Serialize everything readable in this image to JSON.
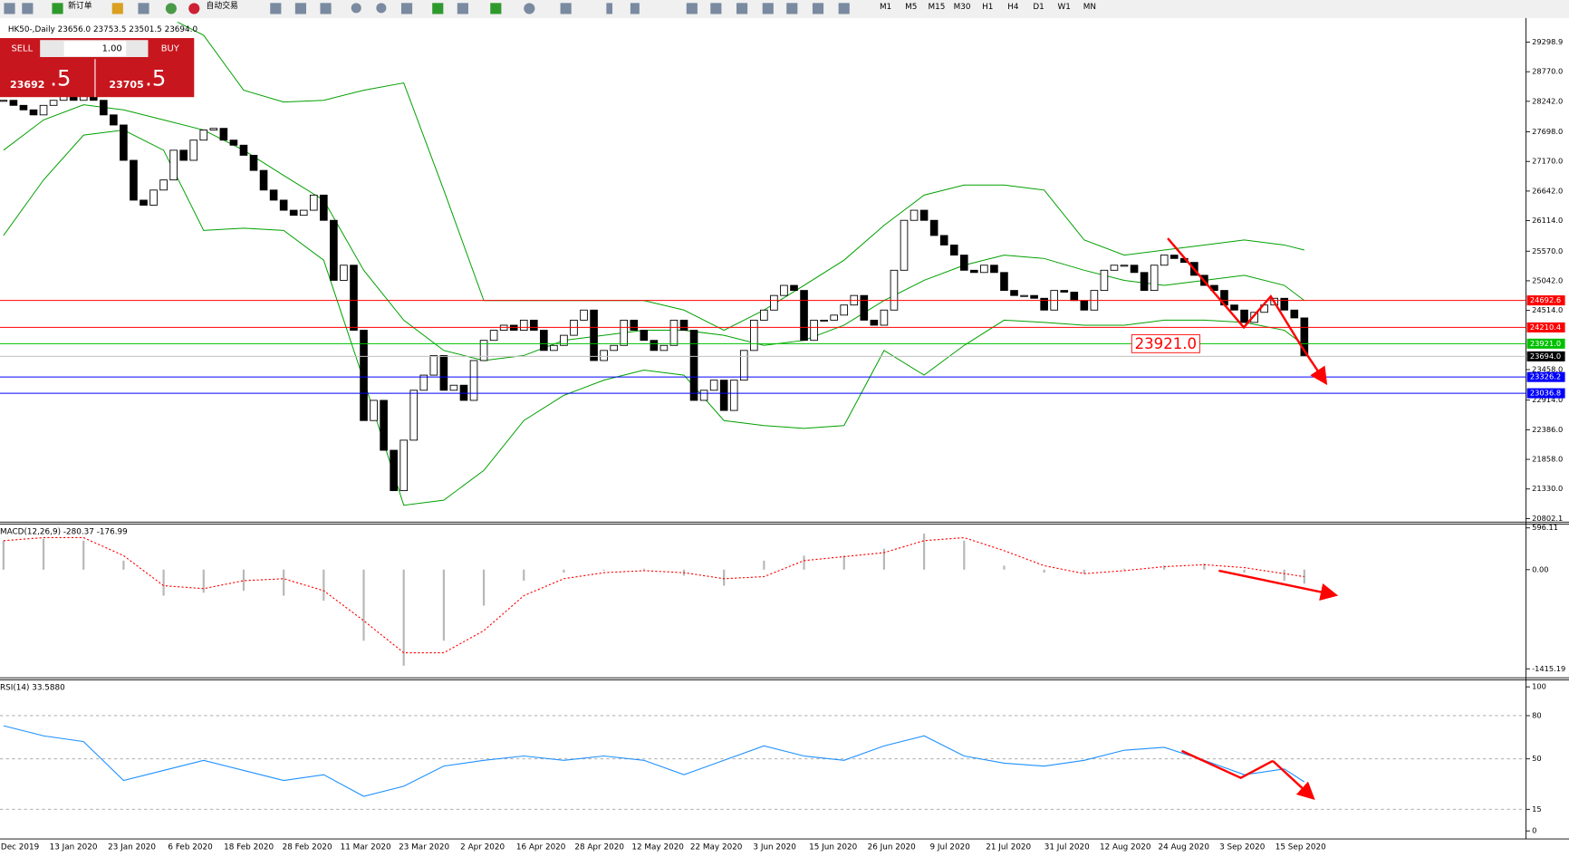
{
  "toolbar": {
    "new_order": "新订单",
    "auto_trading": "自动交易",
    "timeframes": [
      "M1",
      "M5",
      "M15",
      "M30",
      "H1",
      "H4",
      "D1",
      "W1",
      "MN"
    ]
  },
  "trade_panel": {
    "sell": "SELL",
    "lots": "1.00",
    "buy": "BUY",
    "sell_price": "23692",
    "sell_fraction": ".5",
    "buy_price": "23705",
    "buy_fraction": ".5"
  },
  "chart_data": [
    {
      "type": "candlestick",
      "title": "HK50-,Daily",
      "header_values": [
        "23656.0",
        "23753.5",
        "23501.5",
        "23694.0"
      ],
      "close": [
        28260,
        28170,
        28090,
        28000,
        28170,
        28260,
        28350,
        28260,
        28350,
        28260,
        28000,
        27820,
        27190,
        26480,
        26390,
        26660,
        26840,
        27370,
        27190,
        27550,
        27730,
        27760,
        27550,
        27460,
        27280,
        27010,
        26660,
        26480,
        26300,
        26210,
        26300,
        26570,
        26120,
        25050,
        25320,
        24160,
        22550,
        22910,
        22020,
        21300,
        22200,
        23090,
        23360,
        23710,
        23090,
        23180,
        22910,
        23620,
        23980,
        24160,
        24250,
        24160,
        24340,
        24160,
        23800,
        23890,
        24070,
        24340,
        24520,
        23620,
        23800,
        23890,
        24340,
        24160,
        23980,
        23800,
        23890,
        24340,
        24160,
        22910,
        23090,
        23270,
        22730,
        23270,
        23800,
        24340,
        24520,
        24780,
        24960,
        24870,
        23980,
        24340,
        24340,
        24430,
        24610,
        24780,
        24340,
        24250,
        24520,
        25230,
        26120,
        26300,
        26120,
        25850,
        25680,
        25500,
        25230,
        25190,
        25320,
        25190,
        24870,
        24780,
        24780,
        24730,
        24520,
        24870,
        24840,
        24690,
        24520,
        24870,
        25230,
        25320,
        25320,
        25190,
        24870,
        25320,
        25500,
        25440,
        25370,
        25140,
        24960,
        24870,
        24610,
        24520,
        24300,
        24480,
        24610,
        24730,
        24520,
        24380,
        23694
      ],
      "bands": {
        "color": "#00a000",
        "x": [
          0,
          4,
          8,
          12,
          16,
          20,
          24,
          28,
          32,
          36,
          40,
          44,
          48,
          52,
          56,
          60,
          64,
          68,
          72,
          76,
          80,
          84,
          88,
          92,
          96,
          100,
          104,
          108,
          112,
          116,
          120,
          124,
          128,
          130
        ],
        "upper": [
          30050,
          30140,
          30050,
          29960,
          29780,
          29420,
          28440,
          28230,
          28260,
          28440,
          28570,
          26660,
          24690,
          24690,
          24690,
          24690,
          24690,
          24520,
          24160,
          24520,
          24960,
          25410,
          26030,
          26570,
          26750,
          26750,
          26660,
          25770,
          25500,
          25590,
          25680,
          25770,
          25680,
          25590
        ],
        "middle": [
          27370,
          27910,
          28180,
          28090,
          27910,
          27730,
          27370,
          26920,
          26480,
          25230,
          24340,
          23800,
          23620,
          23710,
          23980,
          24070,
          24160,
          24160,
          24070,
          23890,
          23980,
          24250,
          24690,
          25050,
          25320,
          25500,
          25440,
          25230,
          25050,
          24960,
          25050,
          25140,
          24960,
          24690
        ],
        "lower": [
          25850,
          26840,
          27640,
          27730,
          27370,
          25940,
          25980,
          25940,
          25410,
          23270,
          21040,
          21130,
          21660,
          22550,
          23000,
          23270,
          23450,
          23360,
          22550,
          22460,
          22410,
          22460,
          23800,
          23360,
          23890,
          24340,
          24300,
          24250,
          24250,
          24340,
          24340,
          24300,
          24160,
          23890
        ]
      },
      "ylim": [
        20748,
        29656
      ],
      "yticks": [
        29298.9,
        {
          "value": 28770,
          "label": "28770.0"
        },
        {
          "value": 28242,
          "label": "28242.0"
        },
        {
          "value": 27698,
          "label": "27698.0"
        },
        {
          "value": 27170,
          "label": "27170.0"
        },
        {
          "value": 26642,
          "label": "26642.0"
        },
        {
          "value": 26114,
          "label": "26114.0"
        },
        {
          "value": 25570,
          "label": "25570.0"
        },
        {
          "value": 25042,
          "label": "25042.0"
        },
        {
          "value": 24514,
          "label": "24514.0"
        },
        {
          "value": 23458,
          "label": "23458.0"
        },
        {
          "value": 22914,
          "label": "22914.0"
        },
        {
          "value": 22386,
          "label": "22386.0"
        },
        {
          "value": 21858,
          "label": "21858.0"
        },
        {
          "value": 21330,
          "label": "21330.0"
        },
        20802.1
      ],
      "price_lines": [
        {
          "price": 24692.6,
          "color": "#ff0000"
        },
        {
          "price": 24210.4,
          "color": "#ff0000"
        },
        {
          "price": 23921,
          "label": "23921.0",
          "color": "#00c000"
        },
        {
          "price": 23694,
          "label": "23694.0",
          "color": "#c0c0c0",
          "label_background": "#000000"
        },
        {
          "price": 23326.2,
          "color": "#0000ff"
        },
        {
          "price": 23036.8,
          "color": "#0000ff"
        }
      ],
      "annotation": {
        "value": 23921,
        "label": "23921.0",
        "color": "#ff0000"
      }
    },
    {
      "type": "macd",
      "title": "MACD(12,26,9) -280.37 -176.99",
      "x": [
        0,
        4,
        8,
        12,
        16,
        20,
        24,
        28,
        32,
        36,
        40,
        44,
        48,
        52,
        56,
        60,
        64,
        68,
        72,
        76,
        80,
        84,
        88,
        92,
        96,
        100,
        104,
        108,
        112,
        116,
        120,
        124,
        128,
        130
      ],
      "histogram": [
        414,
        443,
        414,
        129,
        -371,
        -329,
        -300,
        -371,
        -443,
        -1014,
        -1371,
        -1014,
        -514,
        -157,
        -43,
        -14,
        14,
        -86,
        -229,
        129,
        200,
        200,
        300,
        514,
        414,
        57,
        -43,
        -57,
        14,
        57,
        86,
        -43,
        -157,
        -200
      ],
      "signal": [
        414,
        457,
        457,
        200,
        -229,
        -271,
        -157,
        -129,
        -300,
        -729,
        -1186,
        -1186,
        -871,
        -371,
        -129,
        -43,
        -14,
        -43,
        -129,
        -100,
        129,
        186,
        243,
        414,
        457,
        271,
        57,
        -57,
        -14,
        43,
        71,
        29,
        -57,
        -100
      ],
      "ylim": [
        -1529,
        643
      ],
      "yticks": [
        596.11,
        {
          "value": 0,
          "label": "0.00"
        },
        -1415.19
      ]
    },
    {
      "type": "rsi",
      "title": "RSI(14) 33.5880",
      "x": [
        0,
        4,
        8,
        12,
        16,
        20,
        24,
        28,
        32,
        36,
        40,
        44,
        48,
        52,
        56,
        60,
        64,
        68,
        72,
        76,
        80,
        84,
        88,
        92,
        96,
        100,
        104,
        108,
        112,
        116,
        120,
        124,
        128,
        130
      ],
      "values": [
        73,
        66,
        62,
        35,
        42,
        49,
        42,
        35,
        39,
        24,
        31,
        45,
        49,
        52,
        49,
        52,
        49,
        39,
        49,
        59,
        52,
        49,
        59,
        66,
        52,
        47,
        45,
        49,
        56,
        58,
        49,
        39,
        43,
        34
      ],
      "color": "#1e90ff",
      "ylim": [
        -5.6,
        104.2
      ],
      "yticks": [
        100,
        80,
        50,
        15,
        0
      ],
      "levels": [
        80,
        50,
        15
      ],
      "date_labels": [
        "Dec 2019",
        "13 Jan 2020",
        "23 Jan 2020",
        "6 Feb 2020",
        "18 Feb 2020",
        "28 Feb 2020",
        "11 Mar 2020",
        "23 Mar 2020",
        "2 Apr 2020",
        "16 Apr 2020",
        "28 Apr 2020",
        "12 May 2020",
        "22 May 2020",
        "3 Jun 2020",
        "15 Jun 2020",
        "26 Jun 2020",
        "9 Jul 2020",
        "21 Jul 2020",
        "31 Jul 2020",
        "12 Aug 2020",
        "24 Aug 2020",
        "3 Sep 2020",
        "15 Sep 2020"
      ]
    }
  ]
}
